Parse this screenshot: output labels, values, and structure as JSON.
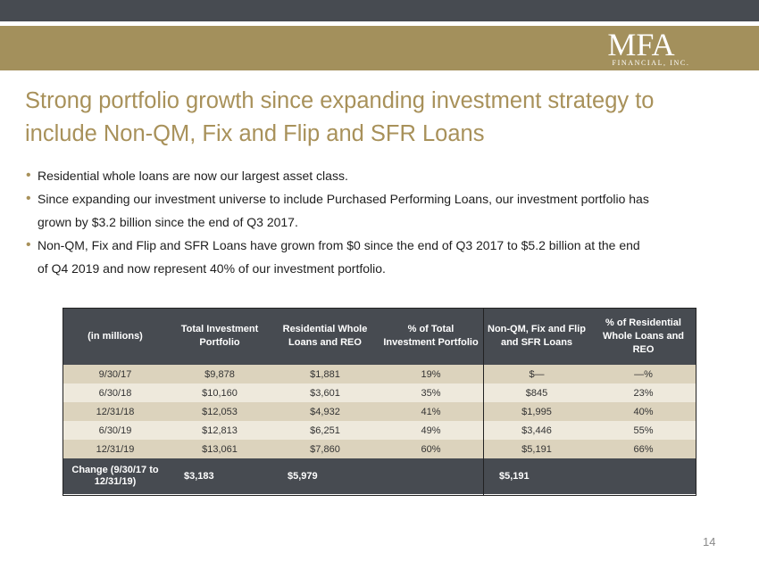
{
  "logo": {
    "main": "MFA",
    "sub": "FINANCIAL, INC."
  },
  "title": {
    "line1": "Strong portfolio growth since expanding investment strategy to",
    "line2": "include Non-QM, Fix and Flip and SFR Loans"
  },
  "bullets": [
    {
      "lines": [
        "Residential whole loans are now our largest asset class."
      ]
    },
    {
      "lines": [
        "Since expanding our investment universe to include Purchased Performing Loans, our investment portfolio has",
        "grown by $3.2 billion since the end of Q3 2017."
      ]
    },
    {
      "lines": [
        "Non-QM, Fix and Flip and SFR Loans have grown from $0 since the end of Q3 2017 to $5.2 billion at the end",
        "of Q4 2019 and now represent 40% of our investment portfolio."
      ]
    }
  ],
  "table": {
    "headers": [
      "(in millions)",
      "Total Investment Portfolio",
      "Residential Whole Loans and REO",
      "% of Total Investment Portfolio",
      "Non-QM, Fix and Flip and SFR Loans",
      "% of Residential Whole Loans and REO"
    ],
    "rows": [
      [
        "9/30/17",
        "$9,878",
        "$1,881",
        "19%",
        "$—",
        "—%"
      ],
      [
        "6/30/18",
        "$10,160",
        "$3,601",
        "35%",
        "$845",
        "23%"
      ],
      [
        "12/31/18",
        "$12,053",
        "$4,932",
        "41%",
        "$1,995",
        "40%"
      ],
      [
        "6/30/19",
        "$12,813",
        "$6,251",
        "49%",
        "$3,446",
        "55%"
      ],
      [
        "12/31/19",
        "$13,061",
        "$7,860",
        "60%",
        "$5,191",
        "66%"
      ]
    ],
    "total": [
      "Change (9/30/17 to 12/31/19)",
      "$3,183",
      "$5,979",
      "",
      "$5,191",
      ""
    ]
  },
  "page_number": "14",
  "colors": {
    "dark": "#474b51",
    "gold": "#a3905c",
    "title": "#a8915a",
    "row_dark": "#dcd3bd",
    "row_light": "#eee9dc"
  }
}
